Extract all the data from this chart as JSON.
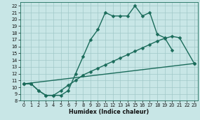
{
  "xlabel": "Humidex (Indice chaleur)",
  "xlim": [
    -0.5,
    23.5
  ],
  "ylim": [
    8,
    22.5
  ],
  "yticks": [
    8,
    9,
    10,
    11,
    12,
    13,
    14,
    15,
    16,
    17,
    18,
    19,
    20,
    21,
    22
  ],
  "xticks": [
    0,
    1,
    2,
    3,
    4,
    5,
    6,
    7,
    8,
    9,
    10,
    11,
    12,
    13,
    14,
    15,
    16,
    17,
    18,
    19,
    20,
    21,
    22,
    23
  ],
  "bg_color": "#c8e6e6",
  "grid_color": "#a0c8c8",
  "line_color": "#1a6b5a",
  "line1_x": [
    0,
    1,
    2,
    3,
    4,
    5,
    6,
    7,
    8,
    9,
    10,
    11,
    12,
    13,
    14,
    15,
    16,
    17,
    18,
    19,
    20
  ],
  "line1_y": [
    10.5,
    10.5,
    9.5,
    8.8,
    8.8,
    8.8,
    9.5,
    12.0,
    14.5,
    17.0,
    18.5,
    21.0,
    20.5,
    20.5,
    20.5,
    22.0,
    20.5,
    21.0,
    17.8,
    17.3,
    15.5
  ],
  "line2_x": [
    0,
    1,
    2,
    3,
    4,
    5,
    6,
    7,
    8,
    9,
    10,
    11,
    12,
    13,
    14,
    15,
    16,
    17,
    18,
    19,
    20,
    21,
    23
  ],
  "line2_y": [
    10.5,
    10.5,
    9.5,
    8.8,
    8.8,
    9.5,
    10.3,
    11.0,
    11.8,
    12.3,
    12.8,
    13.3,
    13.8,
    14.3,
    14.8,
    15.3,
    15.8,
    16.3,
    16.8,
    17.2,
    17.5,
    17.3,
    13.5
  ],
  "line3_x": [
    0,
    23
  ],
  "line3_y": [
    10.5,
    13.5
  ],
  "markersize": 2.5,
  "linewidth": 1.0
}
